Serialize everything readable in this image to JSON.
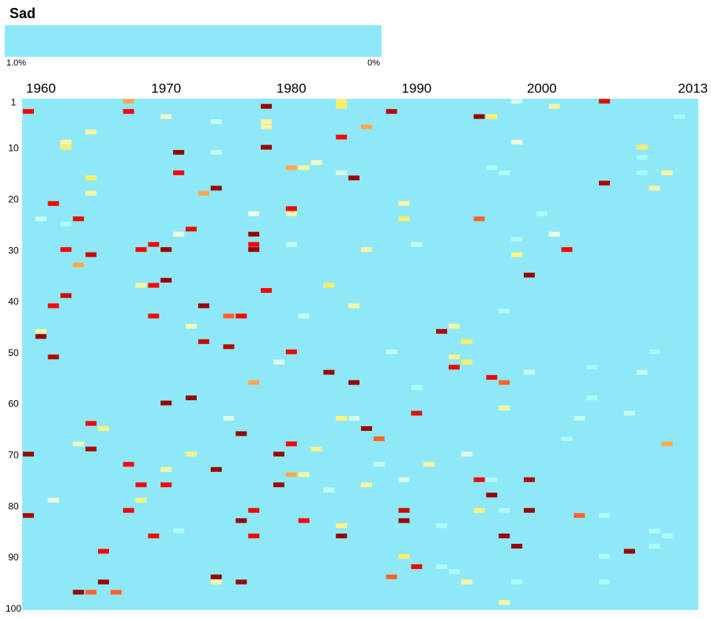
{
  "chart_data": {
    "type": "heatmap",
    "title": "Sad",
    "xlim": [
      1960,
      2013
    ],
    "ylim": [
      1,
      100
    ],
    "xticks": [
      1960,
      1970,
      1980,
      1990,
      2000,
      2013
    ],
    "yticks": [
      1,
      10,
      20,
      30,
      40,
      50,
      60,
      70,
      80,
      90,
      100
    ],
    "colorscale": [
      [
        0,
        "#8fe8f8"
      ],
      [
        0.13,
        "#a6fafa"
      ],
      [
        0.3,
        "#eefce0"
      ],
      [
        0.5,
        "#ffee66"
      ],
      [
        0.67,
        "#ff0000"
      ],
      [
        0.8,
        "#dd1100"
      ],
      [
        1.0,
        "#800000"
      ]
    ],
    "colorbar": {
      "ticks": [
        {
          "value": 1.0,
          "label": "1.0%"
        },
        {
          "value": 0,
          "label": "0%"
        }
      ]
    },
    "cells": [
      [
        1960,
        3,
        0.7
      ],
      [
        1968,
        1,
        0.55
      ],
      [
        1968,
        3,
        0.7
      ],
      [
        1979,
        2,
        0.95
      ],
      [
        1985,
        1,
        0.5
      ],
      [
        1985,
        2,
        0.5
      ],
      [
        1989,
        3,
        0.9
      ],
      [
        1996,
        4,
        0.95
      ],
      [
        1997,
        4,
        0.5
      ],
      [
        1999,
        1,
        0.25
      ],
      [
        2002,
        2,
        0.4
      ],
      [
        2006,
        1,
        0.8
      ],
      [
        2012,
        4,
        0.12
      ],
      [
        1971,
        4,
        0.35
      ],
      [
        1975,
        5,
        0.2
      ],
      [
        1979,
        5,
        0.4
      ],
      [
        1979,
        6,
        0.4
      ],
      [
        1987,
        6,
        0.55
      ],
      [
        1965,
        7,
        0.4
      ],
      [
        1985,
        8,
        0.7
      ],
      [
        1963,
        9,
        0.4
      ],
      [
        1963,
        10,
        0.5
      ],
      [
        1999,
        9,
        0.3
      ],
      [
        1979,
        10,
        0.95
      ],
      [
        1972,
        11,
        0.95
      ],
      [
        1975,
        11,
        0.2
      ],
      [
        2009,
        10,
        0.5
      ],
      [
        2009,
        12,
        0.12
      ],
      [
        1983,
        13,
        0.35
      ],
      [
        1982,
        14,
        0.4
      ],
      [
        1981,
        14,
        0.55
      ],
      [
        1997,
        14,
        0.15
      ],
      [
        1998,
        15,
        0.15
      ],
      [
        1985,
        15,
        0.25
      ],
      [
        1972,
        15,
        0.7
      ],
      [
        1986,
        16,
        0.95
      ],
      [
        1965,
        16,
        0.5
      ],
      [
        2009,
        15,
        0.12
      ],
      [
        2011,
        15,
        0.4
      ],
      [
        2006,
        17,
        0.9
      ],
      [
        1975,
        18,
        0.95
      ],
      [
        1974,
        19,
        0.55
      ],
      [
        1965,
        19,
        0.4
      ],
      [
        2010,
        18,
        0.4
      ],
      [
        1962,
        21,
        0.7
      ],
      [
        1990,
        21,
        0.4
      ],
      [
        1981,
        22,
        0.7
      ],
      [
        1981,
        23,
        0.4
      ],
      [
        1978,
        23,
        0.3
      ],
      [
        2001,
        23,
        0.15
      ],
      [
        1961,
        24,
        0.2
      ],
      [
        1964,
        24,
        0.8
      ],
      [
        1963,
        25,
        0.15
      ],
      [
        1990,
        24,
        0.5
      ],
      [
        1996,
        24,
        0.6
      ],
      [
        1973,
        26,
        0.8
      ],
      [
        1972,
        27,
        0.3
      ],
      [
        1978,
        27,
        0.95
      ],
      [
        2002,
        27,
        0.3
      ],
      [
        1999,
        28,
        0.15
      ],
      [
        1970,
        29,
        0.7
      ],
      [
        1978,
        29,
        0.7
      ],
      [
        1978,
        30,
        0.95
      ],
      [
        1981,
        29,
        0.2
      ],
      [
        1991,
        29,
        0.2
      ],
      [
        1963,
        30,
        0.7
      ],
      [
        1969,
        30,
        0.7
      ],
      [
        1971,
        30,
        0.95
      ],
      [
        1987,
        30,
        0.4
      ],
      [
        2003,
        30,
        0.7
      ],
      [
        1965,
        31,
        0.85
      ],
      [
        1999,
        31,
        0.45
      ],
      [
        1964,
        33,
        0.55
      ],
      [
        2000,
        35,
        0.95
      ],
      [
        1971,
        36,
        0.95
      ],
      [
        1969,
        37,
        0.4
      ],
      [
        1970,
        37,
        0.7
      ],
      [
        1984,
        37,
        0.5
      ],
      [
        1979,
        38,
        0.7
      ],
      [
        1963,
        39,
        0.85
      ],
      [
        1962,
        41,
        0.7
      ],
      [
        1974,
        41,
        0.95
      ],
      [
        1986,
        41,
        0.4
      ],
      [
        1998,
        42,
        0.15
      ],
      [
        1970,
        43,
        0.7
      ],
      [
        1976,
        43,
        0.6
      ],
      [
        1977,
        43,
        0.7
      ],
      [
        1982,
        43,
        0.2
      ],
      [
        1973,
        45,
        0.35
      ],
      [
        1994,
        45,
        0.4
      ],
      [
        1993,
        46,
        0.9
      ],
      [
        1961,
        46,
        0.4
      ],
      [
        1961,
        47,
        0.95
      ],
      [
        1995,
        48,
        0.5
      ],
      [
        1974,
        48,
        0.85
      ],
      [
        1976,
        49,
        0.9
      ],
      [
        1981,
        50,
        0.75
      ],
      [
        1989,
        50,
        0.2
      ],
      [
        2010,
        50,
        0.12
      ],
      [
        1962,
        51,
        0.9
      ],
      [
        1994,
        51,
        0.45
      ],
      [
        1995,
        52,
        0.5
      ],
      [
        1994,
        53,
        0.75
      ],
      [
        1980,
        52,
        0.25
      ],
      [
        2005,
        53,
        0.12
      ],
      [
        2000,
        54,
        0.2
      ],
      [
        2009,
        54,
        0.2
      ],
      [
        1984,
        54,
        0.95
      ],
      [
        1997,
        55,
        0.7
      ],
      [
        1998,
        56,
        0.6
      ],
      [
        1978,
        56,
        0.55
      ],
      [
        1986,
        56,
        0.95
      ],
      [
        1991,
        57,
        0.15
      ],
      [
        1973,
        59,
        0.95
      ],
      [
        2005,
        59,
        0.15
      ],
      [
        1971,
        60,
        0.95
      ],
      [
        1998,
        61,
        0.4
      ],
      [
        1991,
        62,
        0.8
      ],
      [
        2008,
        62,
        0.2
      ],
      [
        1976,
        63,
        0.25
      ],
      [
        1985,
        63,
        0.45
      ],
      [
        1986,
        63,
        0.25
      ],
      [
        2004,
        63,
        0.2
      ],
      [
        1965,
        64,
        0.75
      ],
      [
        1966,
        65,
        0.45
      ],
      [
        1987,
        65,
        0.95
      ],
      [
        1977,
        66,
        0.95
      ],
      [
        1988,
        67,
        0.6
      ],
      [
        2003,
        67,
        0.15
      ],
      [
        1964,
        68,
        0.35
      ],
      [
        1981,
        68,
        0.7
      ],
      [
        2011,
        68,
        0.55
      ],
      [
        1965,
        69,
        0.9
      ],
      [
        1983,
        69,
        0.45
      ],
      [
        1960,
        70,
        0.95
      ],
      [
        1973,
        70,
        0.45
      ],
      [
        1980,
        70,
        0.95
      ],
      [
        1995,
        70,
        0.25
      ],
      [
        1968,
        72,
        0.7
      ],
      [
        1988,
        72,
        0.2
      ],
      [
        1992,
        72,
        0.4
      ],
      [
        1971,
        73,
        0.4
      ],
      [
        1975,
        73,
        0.95
      ],
      [
        1981,
        74,
        0.55
      ],
      [
        1982,
        74,
        0.4
      ],
      [
        1990,
        75,
        0.25
      ],
      [
        1996,
        75,
        0.75
      ],
      [
        1997,
        75,
        0.15
      ],
      [
        2000,
        75,
        0.9
      ],
      [
        1969,
        76,
        0.7
      ],
      [
        1971,
        76,
        0.7
      ],
      [
        1980,
        76,
        0.95
      ],
      [
        1987,
        76,
        0.4
      ],
      [
        1984,
        77,
        0.2
      ],
      [
        1997,
        78,
        0.95
      ],
      [
        1962,
        79,
        0.3
      ],
      [
        1969,
        79,
        0.45
      ],
      [
        1960,
        82,
        0.9
      ],
      [
        1968,
        81,
        0.7
      ],
      [
        1978,
        81,
        0.7
      ],
      [
        1990,
        81,
        0.85
      ],
      [
        1990,
        83,
        0.95
      ],
      [
        1996,
        81,
        0.45
      ],
      [
        1998,
        81,
        0.15
      ],
      [
        2000,
        81,
        0.95
      ],
      [
        2004,
        82,
        0.6
      ],
      [
        2006,
        82,
        0.15
      ],
      [
        1977,
        83,
        0.95
      ],
      [
        1982,
        83,
        0.7
      ],
      [
        1985,
        84,
        0.45
      ],
      [
        1993,
        84,
        0.15
      ],
      [
        1972,
        85,
        0.15
      ],
      [
        2010,
        85,
        0.15
      ],
      [
        2011,
        86,
        0.15
      ],
      [
        1970,
        86,
        0.7
      ],
      [
        1978,
        86,
        0.7
      ],
      [
        1985,
        86,
        0.95
      ],
      [
        1998,
        86,
        0.95
      ],
      [
        1999,
        88,
        0.95
      ],
      [
        2010,
        88,
        0.15
      ],
      [
        1966,
        89,
        0.7
      ],
      [
        2008,
        89,
        0.95
      ],
      [
        1990,
        90,
        0.5
      ],
      [
        2006,
        90,
        0.15
      ],
      [
        1991,
        92,
        0.75
      ],
      [
        1993,
        92,
        0.15
      ],
      [
        1994,
        93,
        0.15
      ],
      [
        1989,
        94,
        0.6
      ],
      [
        1975,
        94,
        0.95
      ],
      [
        1975,
        95,
        0.4
      ],
      [
        1966,
        95,
        0.95
      ],
      [
        1977,
        95,
        0.95
      ],
      [
        1995,
        95,
        0.4
      ],
      [
        1999,
        95,
        0.15
      ],
      [
        2006,
        95,
        0.15
      ],
      [
        1964,
        97,
        0.95
      ],
      [
        1965,
        97,
        0.6
      ],
      [
        1967,
        97,
        0.6
      ],
      [
        1998,
        99,
        0.4
      ]
    ]
  }
}
